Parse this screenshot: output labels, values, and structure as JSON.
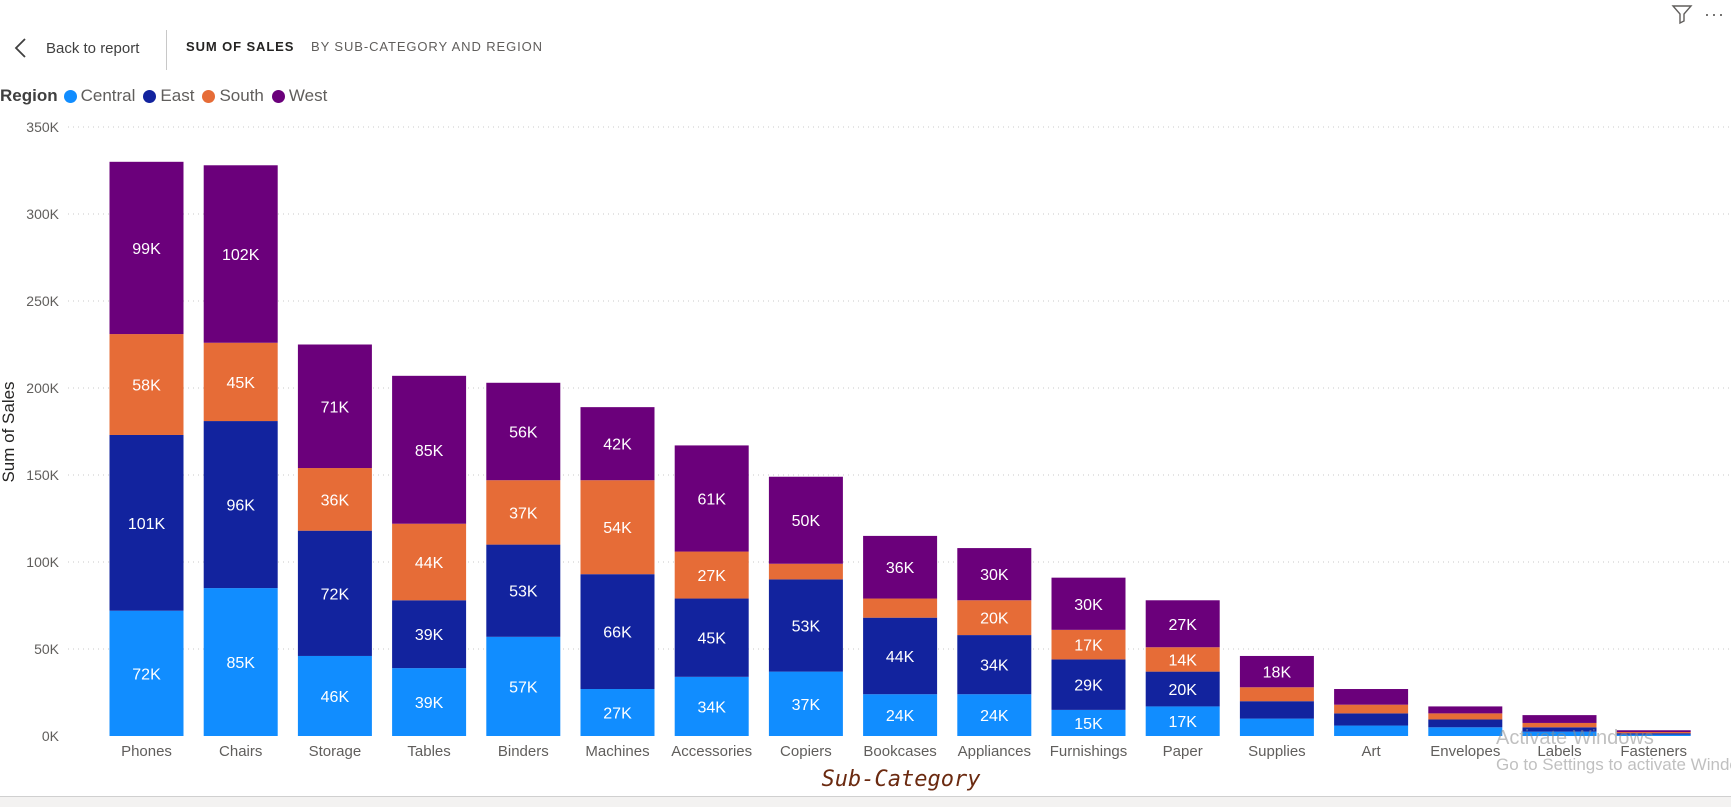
{
  "header": {
    "back_label": "Back to report",
    "title_bold": "SUM OF SALES",
    "title_rest": "BY SUB-CATEGORY AND REGION",
    "more_label": "···"
  },
  "legend": {
    "title": "Region",
    "items": [
      {
        "label": "Central",
        "color": "#118dff"
      },
      {
        "label": "East",
        "color": "#12239e"
      },
      {
        "label": "South",
        "color": "#e66c37"
      },
      {
        "label": "West",
        "color": "#6b007b"
      }
    ]
  },
  "watermark": {
    "line1": "Activate Windows",
    "line2": "Go to Settings to activate Windows."
  },
  "chart_data": {
    "type": "bar",
    "stacked": true,
    "xlabel": "Sub-Category",
    "ylabel": "Sum of Sales",
    "ylim": [
      0,
      350000
    ],
    "yticks": [
      0,
      50000,
      100000,
      150000,
      200000,
      250000,
      300000,
      350000
    ],
    "ytick_labels": [
      "0K",
      "50K",
      "100K",
      "150K",
      "200K",
      "250K",
      "300K",
      "350K"
    ],
    "grid": true,
    "legend_position": "top-left",
    "categories": [
      "Phones",
      "Chairs",
      "Storage",
      "Tables",
      "Binders",
      "Machines",
      "Accessories",
      "Copiers",
      "Bookcases",
      "Appliances",
      "Furnishings",
      "Paper",
      "Supplies",
      "Art",
      "Envelopes",
      "Labels",
      "Fasteners"
    ],
    "series": [
      {
        "name": "Central",
        "color": "#118dff",
        "values": [
          72000,
          85000,
          46000,
          39000,
          57000,
          27000,
          34000,
          37000,
          24000,
          24000,
          15000,
          17000,
          10000,
          6000,
          5000,
          2500,
          800
        ],
        "labels": [
          "72K",
          "85K",
          "46K",
          "39K",
          "57K",
          "27K",
          "34K",
          "37K",
          "24K",
          "24K",
          "15K",
          "17K",
          "",
          "",
          "",
          "",
          ""
        ]
      },
      {
        "name": "East",
        "color": "#12239e",
        "values": [
          101000,
          96000,
          72000,
          39000,
          53000,
          66000,
          45000,
          53000,
          44000,
          34000,
          29000,
          20000,
          10000,
          7000,
          4500,
          2500,
          800
        ],
        "labels": [
          "101K",
          "96K",
          "72K",
          "39K",
          "53K",
          "66K",
          "45K",
          "53K",
          "44K",
          "34K",
          "29K",
          "20K",
          "",
          "",
          "",
          "",
          ""
        ]
      },
      {
        "name": "South",
        "color": "#e66c37",
        "values": [
          58000,
          45000,
          36000,
          44000,
          37000,
          54000,
          27000,
          9000,
          11000,
          20000,
          17000,
          14000,
          8000,
          5000,
          3500,
          2500,
          700
        ],
        "labels": [
          "58K",
          "45K",
          "36K",
          "44K",
          "37K",
          "54K",
          "27K",
          "",
          "",
          "20K",
          "17K",
          "14K",
          "",
          "",
          "",
          "",
          ""
        ]
      },
      {
        "name": "West",
        "color": "#6b007b",
        "values": [
          99000,
          102000,
          71000,
          85000,
          56000,
          42000,
          61000,
          50000,
          36000,
          30000,
          30000,
          27000,
          18000,
          9000,
          4000,
          4500,
          1000
        ],
        "labels": [
          "99K",
          "102K",
          "71K",
          "85K",
          "56K",
          "42K",
          "61K",
          "50K",
          "36K",
          "30K",
          "30K",
          "27K",
          "18K",
          "",
          "",
          "",
          ""
        ]
      }
    ]
  }
}
